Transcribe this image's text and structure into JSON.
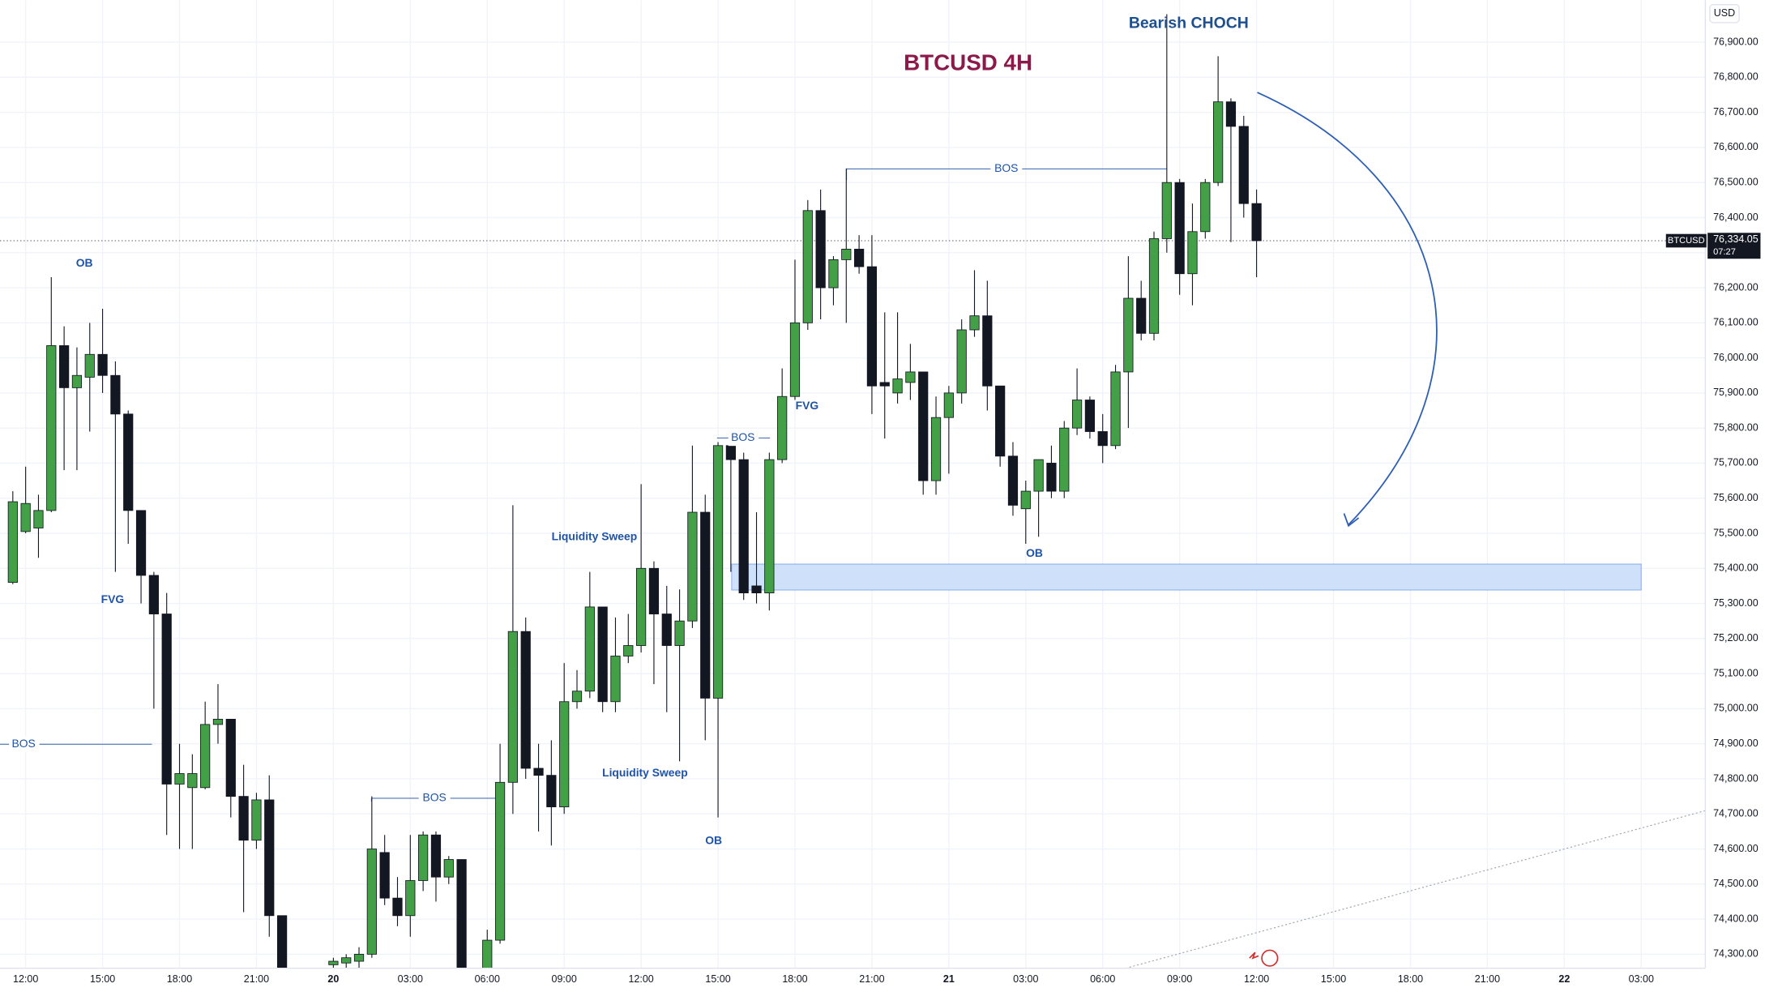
{
  "chart_data": {
    "type": "candlestick",
    "title": "BTCUSD 4H",
    "symbol": "BTCUSD",
    "currency": "USD",
    "countdown": "07:27",
    "last_price": {
      "value": 76334.05,
      "label": "76,334.05"
    },
    "up_color": "#43a047",
    "down_color": "#131722",
    "grid": true,
    "annotations": [
      "OB",
      "FVG",
      "BOS",
      "BOS",
      "Liquidity Sweep",
      "Liquidity Sweep",
      "OB",
      "BOS",
      "FVG",
      "BOS",
      "OB",
      "Bearish CHOCH"
    ],
    "open": [
      75360,
      75505,
      75515,
      75565,
      76035,
      75915,
      75945,
      76010,
      75950,
      75840,
      75565,
      75380,
      75270,
      74785,
      74775,
      74775,
      74955,
      74970,
      74750,
      74625,
      74740,
      74410,
      null,
      null,
      null,
      74270,
      74275,
      74280,
      74300,
      74590,
      74460,
      74410,
      74510,
      74640,
      74520,
      74570,
      null,
      74250,
      74340,
      74790,
      75220,
      74830,
      74810,
      74720,
      75020,
      75050,
      75290,
      75020,
      75150,
      75180,
      75400,
      75270,
      75180,
      75250,
      75560,
      75030,
      75750,
      75710,
      75350,
      75330,
      75710,
      75890,
      76100,
      76420,
      76200,
      76280,
      76310,
      76260,
      75930,
      75900,
      75930,
      75960,
      75650,
      75830,
      75900,
      76080,
      76120,
      75920,
      75720,
      75570,
      75620,
      75700,
      75620,
      75800,
      75880,
      75790,
      75750,
      75960,
      76170,
      76070,
      76340,
      76500,
      76240,
      76360,
      76500,
      76730,
      76660,
      76440
    ],
    "high": [
      75620,
      75690,
      75610,
      76230,
      76090,
      76030,
      76100,
      76140,
      75990,
      75850,
      75565,
      75390,
      75330,
      74900,
      74870,
      75020,
      75070,
      74970,
      74840,
      74760,
      74810,
      74410,
      null,
      null,
      null,
      74290,
      74300,
      74320,
      74750,
      74640,
      74520,
      74640,
      74650,
      74650,
      74580,
      74570,
      null,
      74370,
      74900,
      75580,
      75260,
      74900,
      74910,
      75130,
      75110,
      75390,
      75290,
      75260,
      75270,
      75640,
      75420,
      75350,
      75340,
      75750,
      75610,
      75760,
      75760,
      75730,
      75560,
      75730,
      75970,
      76280,
      76450,
      76480,
      76290,
      76540,
      76350,
      76350,
      76130,
      76130,
      76040,
      75960,
      75890,
      75920,
      76110,
      76250,
      76220,
      75920,
      75760,
      75650,
      75710,
      75750,
      75820,
      75970,
      75890,
      75840,
      75980,
      76290,
      76220,
      76360,
      76980,
      76510,
      76440,
      76510,
      76860,
      76740,
      76690,
      76480
    ],
    "low": [
      75355,
      75500,
      75430,
      75560,
      75680,
      75680,
      75790,
      75900,
      75390,
      75470,
      75300,
      75000,
      74640,
      74600,
      74600,
      74770,
      74900,
      74690,
      74420,
      74600,
      74350,
      74200,
      null,
      null,
      null,
      74260,
      74260,
      74260,
      74290,
      74440,
      74380,
      74350,
      74480,
      74450,
      74500,
      74230,
      null,
      74240,
      74330,
      74700,
      74800,
      74650,
      74610,
      74700,
      75000,
      75030,
      74990,
      74990,
      75130,
      75160,
      75070,
      74990,
      74850,
      75230,
      74910,
      74690,
      75390,
      75310,
      75300,
      75280,
      75700,
      75880,
      76080,
      76110,
      76150,
      76100,
      76240,
      75840,
      75770,
      75870,
      75880,
      75610,
      75610,
      75670,
      75870,
      76060,
      75850,
      75690,
      75550,
      75470,
      75490,
      75600,
      75600,
      75780,
      75770,
      75700,
      75740,
      75800,
      76050,
      76050,
      76300,
      76180,
      76150,
      76340,
      76490,
      76330,
      76400,
      76230
    ],
    "close": [
      75590,
      75585,
      75565,
      76035,
      75915,
      75950,
      76010,
      75950,
      75840,
      75565,
      75380,
      75270,
      74785,
      74815,
      74815,
      74955,
      74970,
      74750,
      74625,
      74740,
      74410,
      74250,
      null,
      null,
      null,
      74280,
      74290,
      74300,
      74600,
      74460,
      74410,
      74510,
      74640,
      74520,
      74570,
      74250,
      null,
      74340,
      74790,
      75220,
      74830,
      74810,
      74720,
      75020,
      75050,
      75290,
      75020,
      75150,
      75180,
      75400,
      75270,
      75180,
      75250,
      75560,
      75030,
      75750,
      75710,
      75330,
      75330,
      75710,
      75890,
      76100,
      76420,
      76200,
      76280,
      76310,
      76260,
      75920,
      75920,
      75940,
      75960,
      75650,
      75830,
      75900,
      76080,
      76120,
      75920,
      75720,
      75580,
      75620,
      75710,
      75620,
      75800,
      75880,
      75790,
      75750,
      75960,
      76170,
      76070,
      76340,
      76500,
      76240,
      76360,
      76500,
      76730,
      76660,
      76440,
      76334.05
    ],
    "xlim": [
      -1,
      132
    ],
    "xticks": [
      {
        "value": 1,
        "label": "12:00"
      },
      {
        "value": 7,
        "label": "15:00"
      },
      {
        "value": 13,
        "label": "18:00"
      },
      {
        "value": 19,
        "label": "21:00"
      },
      {
        "value": 25,
        "label": "20"
      },
      {
        "value": 31,
        "label": "03:00"
      },
      {
        "value": 37,
        "label": "06:00"
      },
      {
        "value": 43,
        "label": "09:00"
      },
      {
        "value": 49,
        "label": "12:00"
      },
      {
        "value": 55,
        "label": "15:00"
      },
      {
        "value": 61,
        "label": "18:00"
      },
      {
        "value": 67,
        "label": "21:00"
      },
      {
        "value": 73,
        "label": "21"
      },
      {
        "value": 79,
        "label": "03:00"
      },
      {
        "value": 85,
        "label": "06:00"
      },
      {
        "value": 91,
        "label": "09:00"
      },
      {
        "value": 97,
        "label": "12:00"
      },
      {
        "value": 103,
        "label": "15:00"
      },
      {
        "value": 109,
        "label": "18:00"
      },
      {
        "value": 115,
        "label": "21:00"
      },
      {
        "value": 121,
        "label": "22"
      },
      {
        "value": 127,
        "label": "03:00"
      }
    ],
    "ylim": [
      74260,
      77020
    ],
    "yticks": [
      {
        "value": 74300,
        "label": "74,300.00"
      },
      {
        "value": 74400,
        "label": "74,400.00"
      },
      {
        "value": 74500,
        "label": "74,500.00"
      },
      {
        "value": 74600,
        "label": "74,600.00"
      },
      {
        "value": 74700,
        "label": "74,700.00"
      },
      {
        "value": 74800,
        "label": "74,800.00"
      },
      {
        "value": 74900,
        "label": "74,900.00"
      },
      {
        "value": 75000,
        "label": "75,000.00"
      },
      {
        "value": 75100,
        "label": "75,100.00"
      },
      {
        "value": 75200,
        "label": "75,200.00"
      },
      {
        "value": 75300,
        "label": "75,300.00"
      },
      {
        "value": 75400,
        "label": "75,400.00"
      },
      {
        "value": 75500,
        "label": "75,500.00"
      },
      {
        "value": 75600,
        "label": "75,600.00"
      },
      {
        "value": 75700,
        "label": "75,700.00"
      },
      {
        "value": 75800,
        "label": "75,800.00"
      },
      {
        "value": 75900,
        "label": "75,900.00"
      },
      {
        "value": 76000,
        "label": "76,000.00"
      },
      {
        "value": 76100,
        "label": "76,100.00"
      },
      {
        "value": 76200,
        "label": "76,200.00"
      },
      {
        "value": 76300,
        "label": "76,300.00"
      },
      {
        "value": 76400,
        "label": "76,400.00"
      },
      {
        "value": 76500,
        "label": "76,500.00"
      },
      {
        "value": 76600,
        "label": "76,600.00"
      },
      {
        "value": 76700,
        "label": "76,700.00"
      },
      {
        "value": 76800,
        "label": "76,800.00"
      },
      {
        "value": 76900,
        "label": "76,900.00"
      }
    ]
  }
}
